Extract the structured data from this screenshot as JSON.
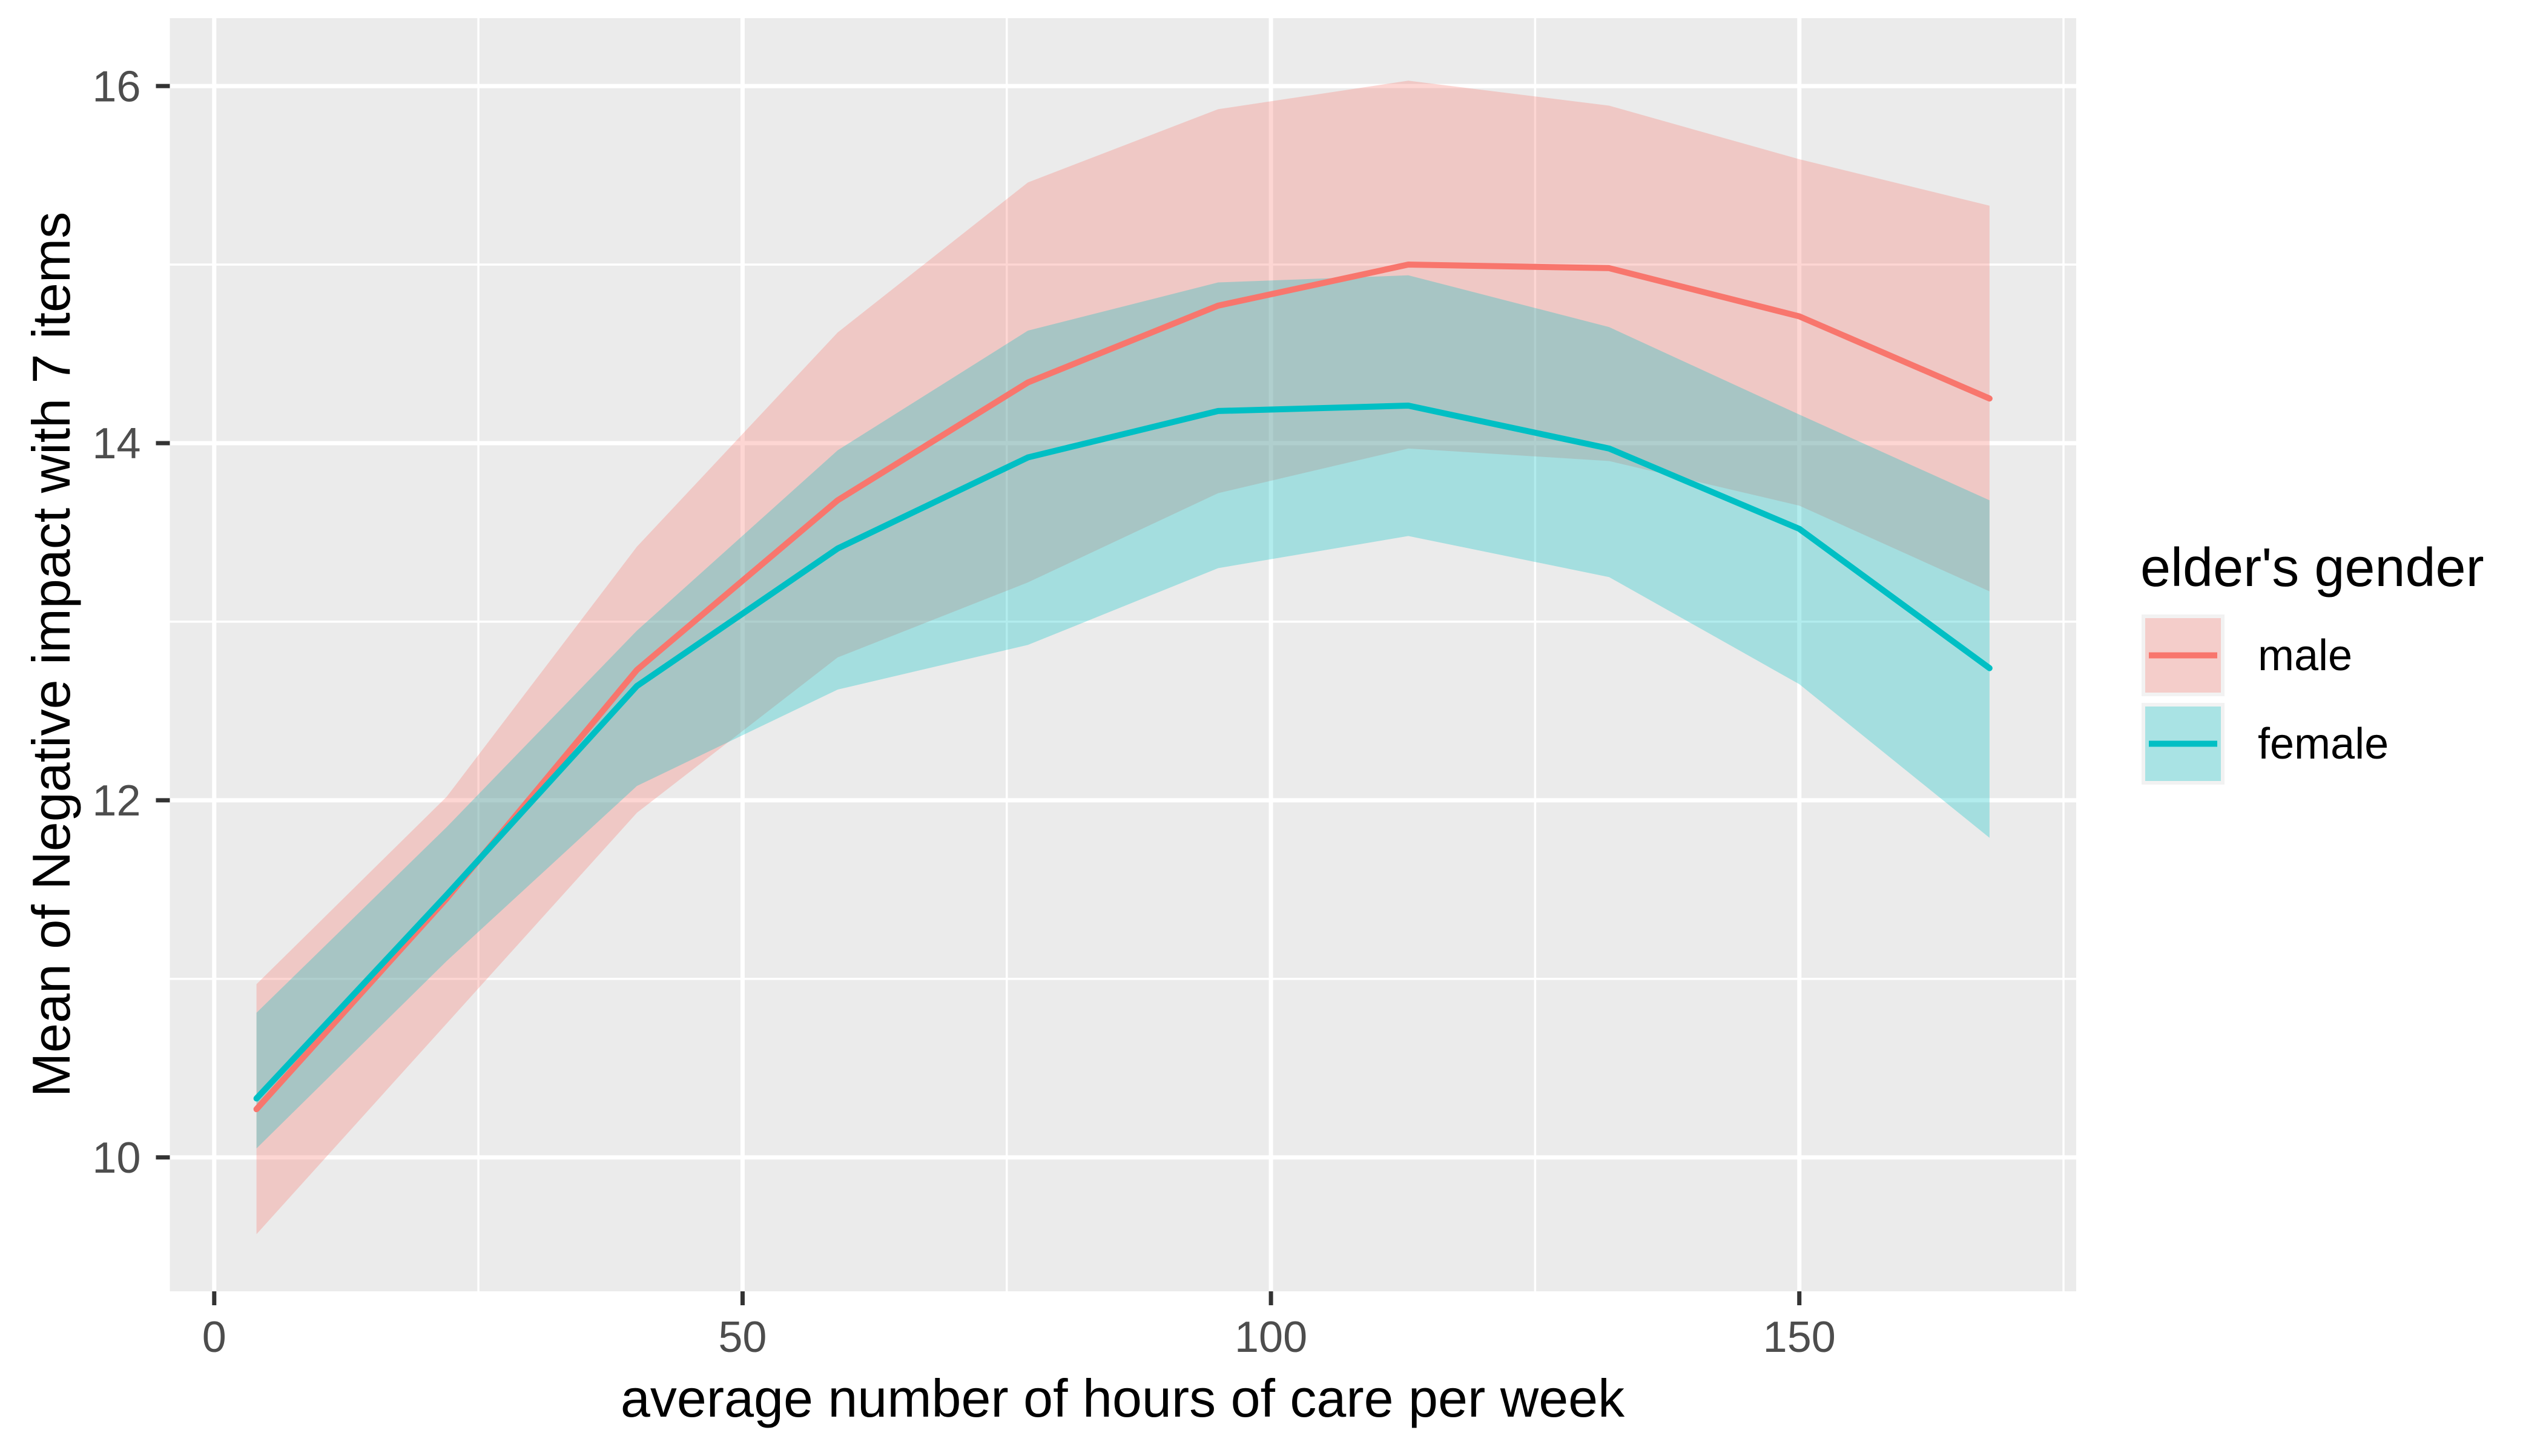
{
  "chart_data": {
    "type": "line",
    "title": "",
    "xlabel": "average number of hours of care per week",
    "ylabel": "Mean of Negative impact with 7 items",
    "legend_title": "elder's gender",
    "legend_position": "right",
    "grid": true,
    "x": [
      4,
      22,
      40,
      59,
      77,
      95,
      113,
      132,
      150,
      168
    ],
    "series": [
      {
        "name": "male",
        "color": "#F8766D",
        "values": [
          10.27,
          11.45,
          12.73,
          13.68,
          14.34,
          14.77,
          15.0,
          14.98,
          14.71,
          14.25
        ],
        "ci_upper": [
          10.97,
          12.02,
          13.42,
          14.62,
          15.46,
          15.87,
          16.03,
          15.89,
          15.59,
          15.33
        ],
        "ci_lower": [
          9.57,
          10.75,
          11.93,
          12.8,
          13.22,
          13.72,
          13.97,
          13.9,
          13.65,
          13.17
        ]
      },
      {
        "name": "female",
        "color": "#00BFC4",
        "values": [
          10.33,
          11.47,
          12.64,
          13.41,
          13.92,
          14.18,
          14.21,
          13.97,
          13.52,
          12.74
        ],
        "ci_upper": [
          10.81,
          11.85,
          12.95,
          13.96,
          14.63,
          14.9,
          14.94,
          14.65,
          14.16,
          13.68
        ],
        "ci_lower": [
          10.05,
          11.1,
          12.08,
          12.62,
          12.87,
          13.3,
          13.48,
          13.25,
          12.65,
          11.79
        ]
      }
    ],
    "xlim": [
      -4.2,
      176.2
    ],
    "ylim": [
      9.25,
      16.38
    ],
    "x_major_ticks": [
      0,
      50,
      100,
      150
    ],
    "x_minor_ticks": [
      25,
      75,
      125,
      175
    ],
    "y_major_ticks": [
      10,
      12,
      14,
      16
    ],
    "y_minor_ticks": [
      11,
      13,
      15
    ],
    "x_tick_labels": [
      "0",
      "50",
      "100",
      "150"
    ],
    "y_tick_labels": [
      "10",
      "12",
      "14",
      "16"
    ],
    "ribbon_alpha": 0.3,
    "panel_bg": "#EBEBEB",
    "grid_color": "#FFFFFF",
    "tick_mark_color": "#333333",
    "tick_label_color": "#4D4D4D",
    "legend_key_bg": "#F2F2F2"
  }
}
